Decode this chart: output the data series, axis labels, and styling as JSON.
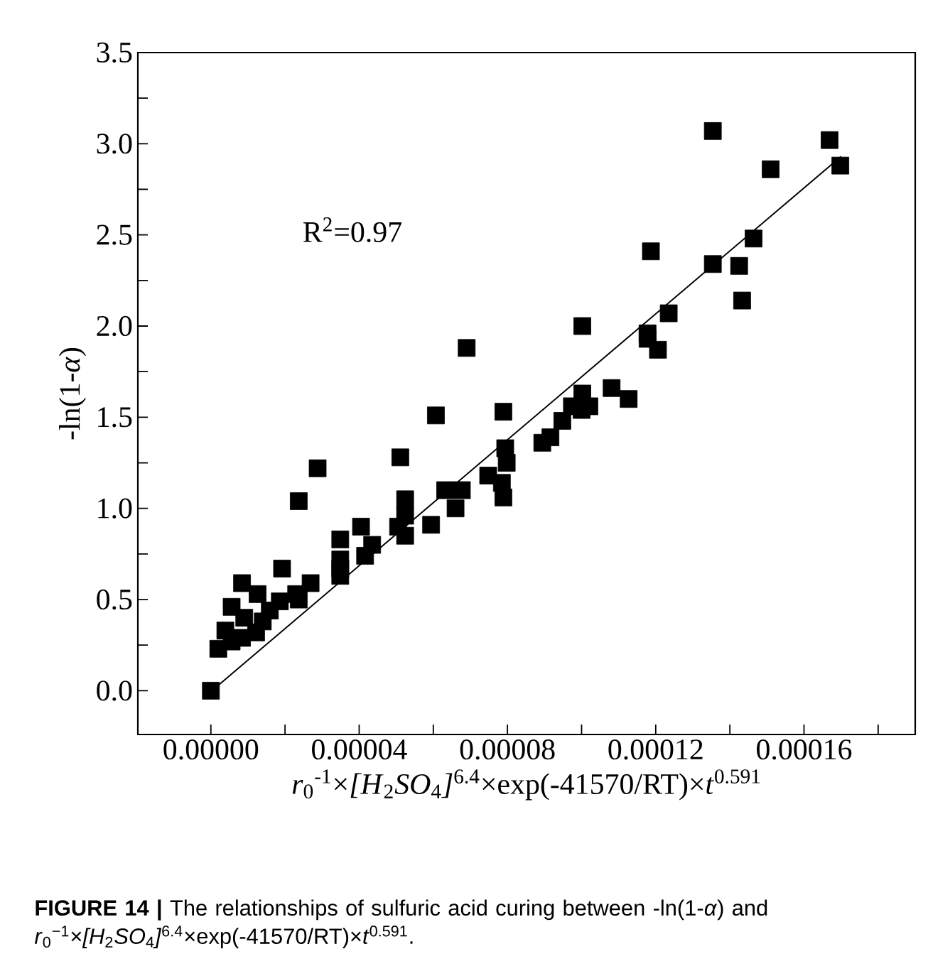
{
  "chart_data": {
    "type": "scatter",
    "xlabel": "*r*$_{0}$$^{-1}$×*[H*$_{2}$*SO*$_{4}$*]*$^{6.4}$×exp(-41570/RT)×*t*$^{0.591}$",
    "ylabel": "-ln(1-*α*)",
    "annotations": [
      "R$^{2}$=0.97",
      "**FIGURE 14 |** The relationships of sulfuric acid curing between -ln(1-*α*) and *r*$_{0}$$^{−1}$×*[H*$_{2}$*SO*$_{4}$*]*$^{6.4}$×exp(-41570/RT)×*t*$^{0.591}$."
    ],
    "xlim": [
      -1.97e-05,
      0.00019
    ],
    "ylim": [
      -0.24,
      3.5
    ],
    "xticks": [
      {
        "value": 0,
        "label": "0.00000"
      },
      {
        "value": 2e-05,
        "label": null
      },
      {
        "value": 4e-05,
        "label": "0.00004"
      },
      {
        "value": 6e-05,
        "label": null
      },
      {
        "value": 8e-05,
        "label": "0.00008"
      },
      {
        "value": 0.0001,
        "label": null
      },
      {
        "value": 0.00012,
        "label": "0.00012"
      },
      {
        "value": 0.00014,
        "label": null
      },
      {
        "value": 0.00016,
        "label": "0.00016"
      },
      {
        "value": 0.00018,
        "label": null
      }
    ],
    "yticks": [
      {
        "value": 0,
        "label": "0.0"
      },
      {
        "value": 0.25,
        "label": null
      },
      {
        "value": 0.5,
        "label": "0.5"
      },
      {
        "value": 0.75,
        "label": null
      },
      {
        "value": 1,
        "label": "1.0"
      },
      {
        "value": 1.25,
        "label": null
      },
      {
        "value": 1.5,
        "label": "1.5"
      },
      {
        "value": 1.75,
        "label": null
      },
      {
        "value": 2,
        "label": "2.0"
      },
      {
        "value": 2.25,
        "label": null
      },
      {
        "value": 2.5,
        "label": "2.5"
      },
      {
        "value": 2.75,
        "label": null
      },
      {
        "value": 3,
        "label": "3.0"
      },
      {
        "value": 3.25,
        "label": null
      },
      {
        "value": 3.5,
        "label": "3.5"
      }
    ],
    "marker": "square",
    "series": [
      {
        "color": "#000000",
        "x": [
          0,
          2e-06,
          3.9e-06,
          5.6e-06,
          8.4e-06,
          5.6e-06,
          8.4e-06,
          9e-06,
          1.26e-05,
          1.22e-05,
          1.4e-05,
          1.59e-05,
          1.86e-05,
          1.92e-05,
          2.3e-05,
          2.37e-05,
          2.37e-05,
          2.69e-05,
          2.88e-05,
          3.49e-05,
          3.49e-05,
          3.49e-05,
          3.49e-05,
          4.05e-05,
          4.16e-05,
          4.35e-05,
          5.11e-05,
          5.24e-05,
          5.24e-05,
          5.05e-05,
          5.24e-05,
          6.07e-05,
          5.94e-05,
          6.32e-05,
          6.6e-05,
          6.77e-05,
          6.9e-05,
          7.89e-05,
          7.94e-05,
          7.98e-05,
          7.85e-05,
          7.89e-05,
          7.48e-05,
          8.94e-05,
          9.16e-05,
          9.48e-05,
          9.74e-05,
          0.0001002,
          0.0001002,
          0.0001,
          0.0001021,
          0.0001081,
          0.0001127,
          0.0001178,
          0.0001187,
          0.0001178,
          0.0001206,
          0.0001235,
          0.0001354,
          0.0001354,
          0.0001425,
          0.0001433,
          0.0001464,
          0.000151,
          0.0001669,
          0.0001698
        ],
        "values": [
          0,
          0.23,
          0.33,
          0.46,
          0.59,
          0.27,
          0.29,
          0.4,
          0.53,
          0.32,
          0.38,
          0.44,
          0.49,
          0.67,
          0.53,
          1.04,
          0.5,
          0.59,
          1.22,
          0.83,
          0.72,
          0.63,
          0.67,
          0.9,
          0.74,
          0.8,
          1.28,
          1.05,
          0.96,
          0.9,
          0.85,
          1.51,
          0.91,
          1.1,
          1.0,
          1.1,
          1.88,
          1.53,
          1.33,
          1.25,
          1.14,
          1.06,
          1.18,
          1.36,
          1.39,
          1.48,
          1.56,
          1.63,
          2.0,
          1.54,
          1.56,
          1.66,
          1.6,
          1.96,
          2.41,
          1.93,
          1.87,
          2.07,
          2.34,
          3.07,
          2.33,
          2.14,
          2.48,
          2.86,
          3.02,
          2.88
        ]
      },
      {
        "type": "line",
        "color": "#000000",
        "marker": "none",
        "line_style": "solid",
        "x": [
          2e-06,
          0.00017
        ],
        "values": [
          0.03,
          2.93
        ]
      }
    ]
  }
}
